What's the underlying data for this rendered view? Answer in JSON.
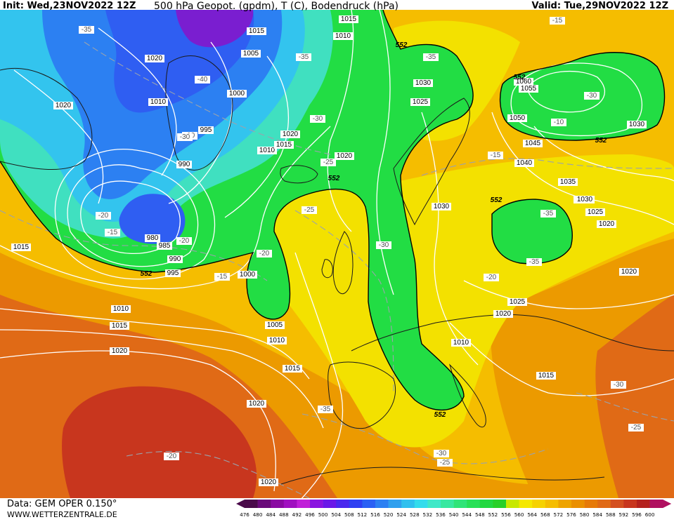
{
  "header": {
    "init": "Init: Wed,23NOV2022 12Z",
    "title": "500 hPa Geopot. (gpdm), T (C), Bodendruck (hPa)",
    "valid": "Valid: Tue,29NOV2022 12Z"
  },
  "footer": {
    "model": "Data: GEM OPER 0.150°",
    "site": "WWW.WETTERZENTRALE.DE"
  },
  "colors": {
    "green": "#22dd44",
    "yellow": "#f3e100",
    "gold": "#f5bd00",
    "orange": "#ec9a00",
    "dark_orange": "#e06a16",
    "red": "#c8361e",
    "blue": "#2f5ef2",
    "purple": "#7a1ed0",
    "cyan": "#33c4ee",
    "teal": "#40e0c0"
  },
  "scale": {
    "labels": [
      "476",
      "480",
      "484",
      "488",
      "492",
      "496",
      "500",
      "504",
      "508",
      "512",
      "516",
      "520",
      "524",
      "528",
      "532",
      "536",
      "540",
      "544",
      "548",
      "552",
      "556",
      "560",
      "564",
      "568",
      "572",
      "576",
      "580",
      "584",
      "588",
      "592",
      "596",
      "600"
    ],
    "colors": [
      "#4a0a4a",
      "#6a0a7a",
      "#8a0aa2",
      "#a010c0",
      "#c020d8",
      "#8a14e0",
      "#6a18e8",
      "#4a28ee",
      "#2f40f2",
      "#2a60f4",
      "#2c80f2",
      "#30a0ee",
      "#30c0ee",
      "#34dcec",
      "#40e8c8",
      "#38e8a0",
      "#30e478",
      "#28e058",
      "#22d840",
      "#28d028",
      "#c8e800",
      "#f5e800",
      "#f6d200",
      "#f5bd00",
      "#eea400",
      "#ea9000",
      "#e67a08",
      "#e06a16",
      "#d45020",
      "#c8361e",
      "#b4221e",
      "#b01060"
    ]
  },
  "isobars": [
    {
      "value": "1015"
    },
    {
      "value": "1010"
    },
    {
      "value": "1015"
    },
    {
      "value": "1005"
    },
    {
      "value": "1020"
    },
    {
      "value": "1010"
    },
    {
      "value": "1020"
    },
    {
      "value": "1000"
    },
    {
      "value": "995"
    },
    {
      "value": "990"
    },
    {
      "value": "1020"
    },
    {
      "value": "1010"
    },
    {
      "value": "1015"
    },
    {
      "value": "1020"
    },
    {
      "value": "980"
    },
    {
      "value": "985"
    },
    {
      "value": "990"
    },
    {
      "value": "995"
    },
    {
      "value": "1000"
    },
    {
      "value": "1015"
    },
    {
      "value": "1010"
    },
    {
      "value": "1015"
    },
    {
      "value": "1005"
    },
    {
      "value": "1010"
    },
    {
      "value": "1015"
    },
    {
      "value": "1020"
    },
    {
      "value": "1020"
    },
    {
      "value": "1020"
    },
    {
      "value": "1030"
    },
    {
      "value": "1025"
    },
    {
      "value": "1060"
    },
    {
      "value": "1055"
    },
    {
      "value": "1050"
    },
    {
      "value": "1045"
    },
    {
      "value": "1040"
    },
    {
      "value": "1035"
    },
    {
      "value": "1030"
    },
    {
      "value": "1025"
    },
    {
      "value": "1020"
    },
    {
      "value": "1025"
    },
    {
      "value": "1030"
    },
    {
      "value": "1030"
    },
    {
      "value": "1020"
    },
    {
      "value": "1025"
    },
    {
      "value": "1020"
    },
    {
      "value": "1010"
    },
    {
      "value": "1015"
    },
    {
      "value": "1020"
    },
    {
      "value": "1025"
    },
    {
      "value": "1030"
    },
    {
      "value": "1020"
    }
  ],
  "temps": [
    {
      "value": "-35"
    },
    {
      "value": "-35"
    },
    {
      "value": "-40"
    },
    {
      "value": "-35"
    },
    {
      "value": "-30"
    },
    {
      "value": "-30"
    },
    {
      "value": "-25"
    },
    {
      "value": "-25"
    },
    {
      "value": "-20"
    },
    {
      "value": "-20"
    },
    {
      "value": "-15"
    },
    {
      "value": "-20"
    },
    {
      "value": "-30"
    },
    {
      "value": "-35"
    },
    {
      "value": "-35"
    },
    {
      "value": "-30"
    },
    {
      "value": "-30"
    },
    {
      "value": "-25"
    },
    {
      "value": "-20"
    },
    {
      "value": "-25"
    },
    {
      "value": "-15"
    },
    {
      "value": "-20"
    },
    {
      "value": "-15"
    },
    {
      "value": "-15"
    },
    {
      "value": "-10"
    },
    {
      "value": "-10"
    },
    {
      "value": "-35"
    },
    {
      "value": "-30"
    }
  ],
  "geo_labels": [
    {
      "value": "552"
    },
    {
      "value": "552"
    },
    {
      "value": "552"
    },
    {
      "value": "552"
    },
    {
      "value": "552"
    },
    {
      "value": "552"
    },
    {
      "value": "552"
    }
  ]
}
